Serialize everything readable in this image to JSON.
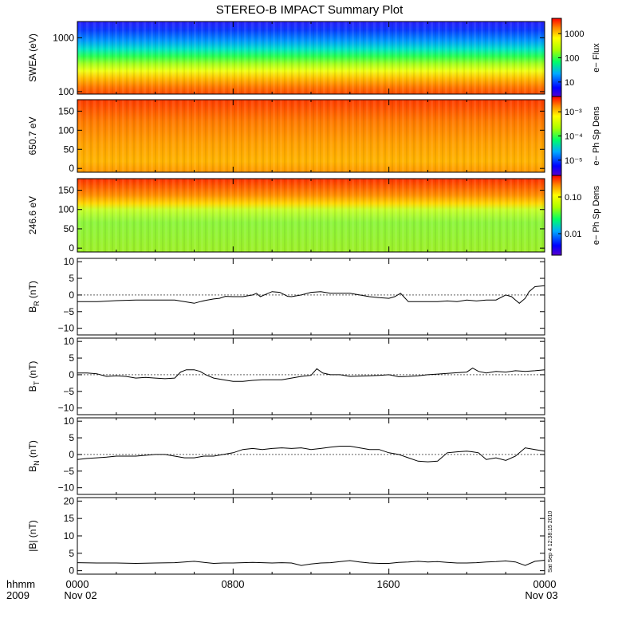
{
  "title": "STEREO-B IMPACT Summary Plot",
  "x_axis": {
    "tick_labels": [
      "0000",
      "0800",
      "1600",
      "0000"
    ],
    "tick_sublabels": [
      "Nov 02",
      "",
      "",
      "Nov 03"
    ],
    "corner_label_1": "hhmm",
    "corner_label_2": "2009"
  },
  "timestamp": "Sat Sep  4 12:38:15 2010",
  "chart_data": [
    {
      "type": "heatmap",
      "ylabel": "SWEA (eV)",
      "ylim": [
        90,
        2000
      ],
      "yscale": "log",
      "y_ticks": [
        100,
        1000
      ],
      "y_tick_labels": [
        "100",
        "1000"
      ],
      "colorbar_label": "e− Flux",
      "colorbar_ticks": [
        "10",
        "100",
        "1000"
      ],
      "colorbar_scale": "log",
      "colorbar_range": [
        3,
        2500
      ]
    },
    {
      "type": "heatmap",
      "ylabel": "650.7 eV",
      "ylim": [
        -10,
        180
      ],
      "y_ticks": [
        0,
        50,
        100,
        150
      ],
      "y_tick_labels": [
        "0",
        "50",
        "100",
        "150"
      ],
      "colorbar_label": "e− Ph Sp Dens",
      "colorbar_ticks": [
        "10⁻⁵",
        "10⁻⁴",
        "10⁻³"
      ],
      "colorbar_scale": "log",
      "colorbar_range": [
        5e-06,
        0.003
      ]
    },
    {
      "type": "heatmap",
      "ylabel": "246.6 eV",
      "ylim": [
        -10,
        180
      ],
      "y_ticks": [
        0,
        50,
        100,
        150
      ],
      "y_tick_labels": [
        "0",
        "50",
        "100",
        "150"
      ],
      "colorbar_label": "e− Ph Sp Dens",
      "colorbar_ticks": [
        "0.01",
        "0.10"
      ],
      "colorbar_scale": "log",
      "colorbar_range": [
        0.01,
        0.4
      ]
    },
    {
      "type": "line",
      "ylabel": "B",
      "ylabel_sub": "R",
      "ylabel_unit": "(nT)",
      "ylim": [
        -12,
        11
      ],
      "y_ticks": [
        -10,
        -5,
        0,
        5,
        10
      ],
      "y_tick_labels": [
        "−10",
        "−5",
        "0",
        "5",
        "10"
      ],
      "zero_line": true,
      "x": [
        0,
        1,
        2,
        3,
        4,
        5,
        5.5,
        6,
        6.3,
        6.6,
        7,
        7.3,
        7.6,
        8,
        8.5,
        9,
        9.2,
        9.4,
        9.8,
        10,
        10.4,
        10.8,
        11,
        11.5,
        12,
        12.5,
        13,
        13.5,
        14,
        14.5,
        15,
        15.5,
        16,
        16.3,
        16.6,
        17,
        17.5,
        18,
        18.5,
        19,
        19.5,
        20,
        20.5,
        21,
        21.5,
        22,
        22.3,
        22.5,
        22.7,
        23,
        23.2,
        23.5,
        24
      ],
      "values": [
        -2,
        -2,
        -1.7,
        -1.5,
        -1.5,
        -1.5,
        -2,
        -2.5,
        -2,
        -1.6,
        -1.2,
        -1,
        -0.4,
        -0.5,
        -0.5,
        0,
        0.5,
        -0.5,
        0.5,
        1,
        0.8,
        -0.4,
        -0.5,
        0,
        0.8,
        1,
        0.5,
        0.5,
        0.5,
        0,
        -0.5,
        -0.8,
        -1,
        -0.5,
        0.5,
        -2,
        -2,
        -2,
        -2,
        -1.8,
        -2,
        -1.5,
        -1.8,
        -1.5,
        -1.5,
        0,
        -0.5,
        -1.5,
        -2.5,
        -1,
        1,
        2.5,
        2.8
      ]
    },
    {
      "type": "line",
      "ylabel": "B",
      "ylabel_sub": "T",
      "ylabel_unit": "(nT)",
      "ylim": [
        -12,
        11
      ],
      "y_ticks": [
        -10,
        -5,
        0,
        5,
        10
      ],
      "y_tick_labels": [
        "−10",
        "−5",
        "0",
        "5",
        "10"
      ],
      "zero_line": true,
      "x": [
        0,
        0.5,
        1,
        1.5,
        2,
        2.5,
        3,
        3.5,
        4,
        4.5,
        5,
        5.3,
        5.6,
        6,
        6.3,
        6.6,
        7,
        7.5,
        8,
        8.5,
        9,
        9.5,
        10,
        10.5,
        11,
        11.5,
        12,
        12.3,
        12.6,
        13,
        13.5,
        14,
        14.5,
        15,
        15.5,
        16,
        16.5,
        17,
        17.5,
        18,
        18.5,
        19,
        19.5,
        20,
        20.3,
        20.6,
        21,
        21.5,
        22,
        22.5,
        23,
        23.5,
        24
      ],
      "values": [
        0.5,
        0.5,
        0.3,
        -0.5,
        -0.3,
        -0.5,
        -1,
        -0.8,
        -1,
        -1.2,
        -1,
        0.8,
        1.5,
        1.5,
        1,
        0,
        -1,
        -1.5,
        -2,
        -2,
        -1.7,
        -1.5,
        -1.5,
        -1.5,
        -1,
        -0.5,
        -0.2,
        1.8,
        0.5,
        0,
        0,
        -0.5,
        -0.4,
        -0.3,
        -0.2,
        0,
        -0.6,
        -0.5,
        -0.3,
        0,
        0.2,
        0.4,
        0.6,
        0.8,
        2,
        1,
        0.5,
        1,
        0.8,
        1.2,
        1,
        1.2,
        1.5
      ]
    },
    {
      "type": "line",
      "ylabel": "B",
      "ylabel_sub": "N",
      "ylabel_unit": "(nT)",
      "ylim": [
        -12,
        11
      ],
      "y_ticks": [
        -10,
        -5,
        0,
        5,
        10
      ],
      "y_tick_labels": [
        "−10",
        "−5",
        "0",
        "5",
        "10"
      ],
      "zero_line": true,
      "x": [
        0,
        0.5,
        1,
        1.5,
        2,
        3,
        4,
        4.5,
        5,
        5.5,
        6,
        6.5,
        7,
        7.5,
        8,
        8.5,
        9,
        9.5,
        10,
        10.5,
        11,
        11.5,
        12,
        12.5,
        13,
        13.5,
        14,
        14.5,
        15,
        15.5,
        16,
        16.5,
        17,
        17.5,
        18,
        18.5,
        19,
        19.5,
        20,
        20.3,
        20.6,
        21,
        21.5,
        22,
        22.5,
        23,
        23.5,
        24
      ],
      "values": [
        -1.5,
        -1.2,
        -1,
        -0.8,
        -0.5,
        -0.5,
        0,
        0,
        -0.5,
        -1,
        -1,
        -0.5,
        -0.5,
        0,
        0.5,
        1.5,
        1.8,
        1.5,
        1.8,
        2,
        1.8,
        2,
        1.5,
        1.8,
        2.2,
        2.5,
        2.5,
        2,
        1.5,
        1.5,
        0.5,
        0,
        -1,
        -2,
        -2.2,
        -2,
        0.5,
        0.8,
        1,
        0.8,
        0.5,
        -1.5,
        -1,
        -1.8,
        -0.5,
        2,
        1.5,
        1
      ]
    },
    {
      "type": "line",
      "ylabel": "|B| (nT)",
      "ylim": [
        -1,
        21
      ],
      "y_ticks": [
        0,
        5,
        10,
        15,
        20
      ],
      "y_tick_labels": [
        "0",
        "5",
        "10",
        "15",
        "20"
      ],
      "zero_line": false,
      "x": [
        0,
        1,
        2,
        3,
        4,
        5,
        5.5,
        6,
        6.5,
        7,
        7.5,
        8,
        8.5,
        9,
        9.5,
        10,
        10.5,
        11,
        11.5,
        12,
        12.5,
        13,
        13.5,
        14,
        14.5,
        15,
        15.5,
        16,
        16.5,
        17,
        17.5,
        18,
        18.5,
        19,
        19.5,
        20,
        20.5,
        21,
        21.5,
        22,
        22.5,
        23,
        23.5,
        24
      ],
      "values": [
        2.3,
        2.2,
        2.2,
        2.1,
        2.2,
        2.3,
        2.5,
        2.7,
        2.4,
        2.1,
        2.2,
        2.2,
        2.3,
        2.4,
        2.3,
        2.2,
        2.3,
        2.2,
        1.5,
        1.9,
        2.2,
        2.3,
        2.6,
        2.9,
        2.5,
        2.2,
        2.1,
        2.1,
        2.4,
        2.5,
        2.7,
        2.5,
        2.6,
        2.4,
        2.2,
        2.2,
        2.3,
        2.5,
        2.6,
        2.8,
        2.5,
        1.5,
        2.7,
        3
      ]
    }
  ]
}
